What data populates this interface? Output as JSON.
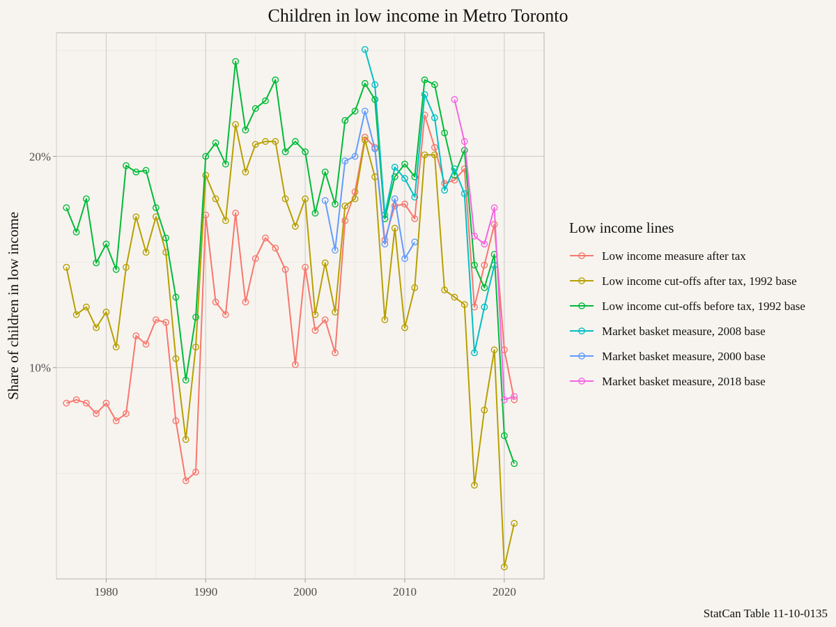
{
  "chart_data": {
    "type": "line",
    "title": "Children in low income in Metro Toronto",
    "xlabel": "",
    "ylabel": "Share of children in low income",
    "caption": "StatCan Table 11-10-0135",
    "legend_title": "Low income lines",
    "legend_position": "right",
    "grid": true,
    "log_scale_y": true,
    "xlim": [
      1975,
      2024
    ],
    "ylim": [
      0.05,
      0.3
    ],
    "x_ticks": [
      1980,
      1990,
      2000,
      2010,
      2020
    ],
    "x_tick_labels": [
      "1980",
      "1990",
      "2000",
      "2010",
      "2020"
    ],
    "y_ticks": [
      0.1,
      0.2
    ],
    "y_tick_labels": [
      "10%",
      "20%"
    ],
    "y_minor_ticks": [
      0.0707,
      0.1414,
      0.2828
    ],
    "series": [
      {
        "name": "Low income measure after tax",
        "color": "#F8766D",
        "x": [
          1976,
          1977,
          1978,
          1979,
          1980,
          1981,
          1982,
          1983,
          1984,
          1985,
          1986,
          1987,
          1988,
          1989,
          1990,
          1991,
          1992,
          1993,
          1994,
          1995,
          1996,
          1997,
          1998,
          1999,
          2000,
          2001,
          2002,
          2003,
          2004,
          2005,
          2006,
          2007,
          2008,
          2009,
          2010,
          2011,
          2012,
          2013,
          2014,
          2015,
          2016,
          2017,
          2018,
          2019,
          2020,
          2021
        ],
        "y": [
          0.089,
          0.09,
          0.089,
          0.086,
          0.089,
          0.084,
          0.086,
          0.111,
          0.108,
          0.117,
          0.116,
          0.084,
          0.069,
          0.071,
          0.165,
          0.124,
          0.119,
          0.166,
          0.124,
          0.143,
          0.153,
          0.148,
          0.138,
          0.101,
          0.139,
          0.113,
          0.117,
          0.105,
          0.162,
          0.178,
          0.213,
          0.206,
          0.152,
          0.17,
          0.171,
          0.163,
          0.229,
          0.206,
          0.183,
          0.185,
          0.192,
          0.122,
          0.14,
          0.16,
          0.106,
          0.09
        ]
      },
      {
        "name": "Low income cut-offs after tax, 1992 base",
        "color": "#B79F00",
        "x": [
          1976,
          1977,
          1978,
          1979,
          1980,
          1981,
          1982,
          1983,
          1984,
          1985,
          1986,
          1987,
          1988,
          1989,
          1990,
          1991,
          1992,
          1993,
          1994,
          1995,
          1996,
          1997,
          1998,
          1999,
          2000,
          2001,
          2002,
          2003,
          2004,
          2005,
          2006,
          2007,
          2008,
          2009,
          2010,
          2011,
          2012,
          2013,
          2014,
          2015,
          2016,
          2017,
          2018,
          2019,
          2020,
          2021
        ],
        "y": [
          0.139,
          0.119,
          0.122,
          0.114,
          0.12,
          0.107,
          0.139,
          0.164,
          0.146,
          0.164,
          0.146,
          0.103,
          0.079,
          0.107,
          0.188,
          0.174,
          0.162,
          0.222,
          0.19,
          0.208,
          0.21,
          0.21,
          0.174,
          0.159,
          0.174,
          0.119,
          0.141,
          0.12,
          0.17,
          0.174,
          0.211,
          0.187,
          0.117,
          0.158,
          0.114,
          0.13,
          0.201,
          0.201,
          0.129,
          0.126,
          0.123,
          0.068,
          0.087,
          0.106,
          0.052,
          0.06
        ]
      },
      {
        "name": "Low income cut-offs before tax, 1992 base",
        "color": "#00BA38",
        "x": [
          1976,
          1977,
          1978,
          1979,
          1980,
          1981,
          1982,
          1983,
          1984,
          1985,
          1986,
          1987,
          1988,
          1989,
          1990,
          1991,
          1992,
          1993,
          1994,
          1995,
          1996,
          1997,
          1998,
          1999,
          2000,
          2001,
          2002,
          2003,
          2004,
          2005,
          2006,
          2007,
          2008,
          2009,
          2010,
          2011,
          2012,
          2013,
          2014,
          2015,
          2016,
          2017,
          2018,
          2019,
          2020,
          2021
        ],
        "y": [
          0.169,
          0.156,
          0.174,
          0.141,
          0.15,
          0.138,
          0.194,
          0.19,
          0.191,
          0.169,
          0.153,
          0.126,
          0.096,
          0.118,
          0.2,
          0.209,
          0.195,
          0.273,
          0.218,
          0.234,
          0.24,
          0.257,
          0.203,
          0.21,
          0.203,
          0.166,
          0.19,
          0.171,
          0.225,
          0.232,
          0.254,
          0.241,
          0.163,
          0.187,
          0.195,
          0.187,
          0.257,
          0.253,
          0.216,
          0.188,
          0.204,
          0.14,
          0.13,
          0.145,
          0.08,
          0.073
        ]
      },
      {
        "name": "Market basket measure, 2008 base",
        "color": "#00BFC4",
        "x": [
          2006,
          2007,
          2008,
          2009,
          2010,
          2011,
          2012,
          2013,
          2014,
          2015,
          2016,
          2017,
          2018,
          2019
        ],
        "y": [
          0.284,
          0.253,
          0.165,
          0.193,
          0.186,
          0.175,
          0.245,
          0.227,
          0.179,
          0.192,
          0.177,
          0.105,
          0.122,
          0.14
        ]
      },
      {
        "name": "Market basket measure, 2000 base",
        "color": "#619CFF",
        "x": [
          2002,
          2003,
          2004,
          2005,
          2006,
          2007,
          2008,
          2009,
          2010,
          2011
        ],
        "y": [
          0.173,
          0.147,
          0.197,
          0.2,
          0.232,
          0.205,
          0.15,
          0.174,
          0.143,
          0.151
        ]
      },
      {
        "name": "Market basket measure, 2018 base",
        "color": "#F564E3",
        "x": [
          2015,
          2016,
          2017,
          2018,
          2019,
          2020,
          2021
        ],
        "y": [
          0.241,
          0.21,
          0.154,
          0.15,
          0.169,
          0.09,
          0.091
        ]
      }
    ]
  }
}
